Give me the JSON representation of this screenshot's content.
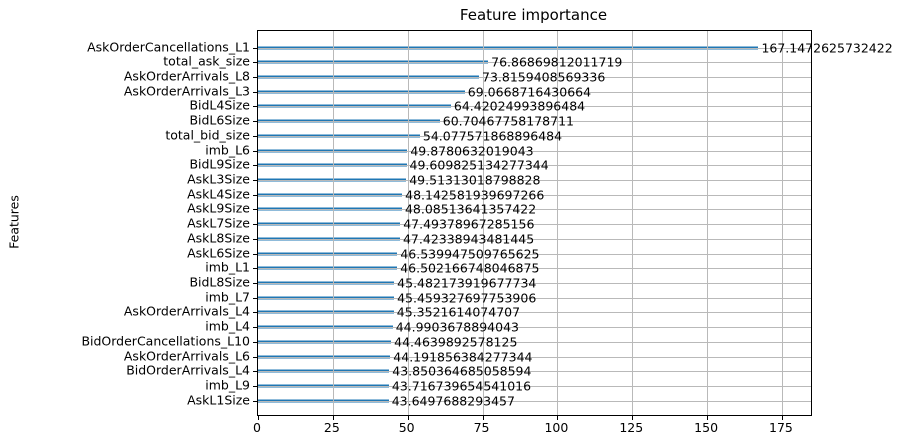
{
  "chart_data": {
    "type": "bar",
    "orientation": "horizontal",
    "title": "Feature importance",
    "xlabel": "",
    "ylabel": "Features",
    "categories": [
      "AskOrderCancellations_L1",
      "total_ask_size",
      "AskOrderArrivals_L8",
      "AskOrderArrivals_L3",
      "BidL4Size",
      "BidL6Size",
      "total_bid_size",
      "imb_L6",
      "BidL9Size",
      "AskL3Size",
      "AskL4Size",
      "AskL9Size",
      "AskL7Size",
      "AskL8Size",
      "AskL6Size",
      "imb_L1",
      "BidL8Size",
      "imb_L7",
      "AskOrderArrivals_L4",
      "imb_L4",
      "BidOrderCancellations_L10",
      "AskOrderArrivals_L6",
      "BidOrderArrivals_L4",
      "imb_L9",
      "AskL1Size"
    ],
    "values": [
      167.1472625732422,
      76.86869812011719,
      73.8159408569336,
      69.0668716430664,
      64.42024993896484,
      60.70467758178711,
      54.077571868896484,
      49.8780632019043,
      49.609825134277344,
      49.51313018798828,
      48.142581939697266,
      48.08513641357422,
      47.49378967285156,
      47.42338943481445,
      46.539947509765625,
      46.502166748046875,
      45.482173919677734,
      45.459327697753906,
      45.3521614074707,
      44.9903678894043,
      44.4639892578125,
      44.191856384277344,
      43.850364685058594,
      43.716739654541016,
      43.6497688293457
    ],
    "value_labels": [
      "167.1472625732422",
      "76.86869812011719",
      "73.8159408569336",
      "69.0668716430664",
      "64.42024993896484",
      "60.70467758178711",
      "54.077571868896484",
      "49.8780632019043",
      "49.609825134277344",
      "49.51313018798828",
      "48.142581939697266",
      "48.08513641357422",
      "47.49378967285156",
      "47.42338943481445",
      "46.539947509765625",
      "46.502166748046875",
      "45.482173919677734",
      "45.459327697753906",
      "45.3521614074707",
      "44.9903678894043",
      "44.4639892578125",
      "44.191856384277344",
      "43.850364685058594",
      "43.716739654541016",
      "43.6497688293457"
    ],
    "x_ticks": [
      0,
      25,
      50,
      75,
      100,
      125,
      150,
      175
    ],
    "xlim": [
      0,
      184.7
    ],
    "grid": true,
    "grid_on_top": true,
    "legend": false,
    "bar_color": "#1f77b4",
    "grid_color": "#b9b9b9",
    "axis_color": "#000000",
    "background_color": "#ffffff"
  }
}
